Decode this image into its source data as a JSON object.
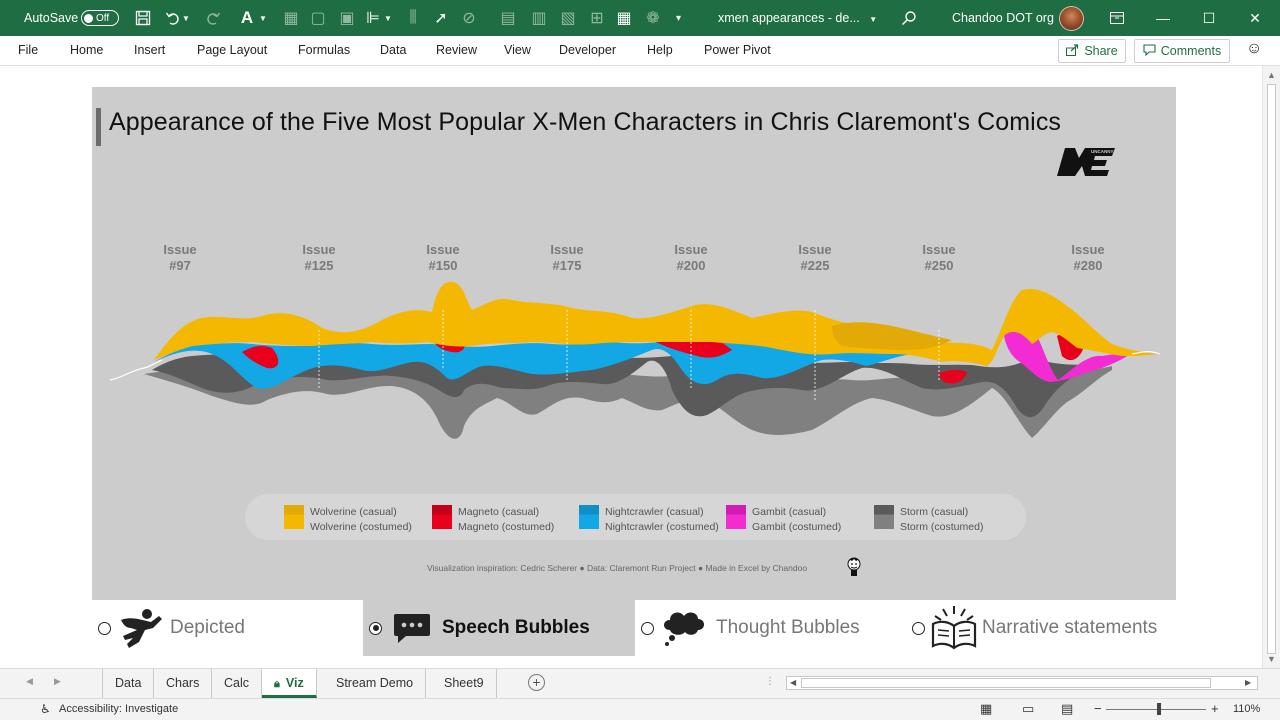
{
  "titlebar": {
    "autosave_label": "AutoSave",
    "autosave_state": "Off",
    "doc_title": "xmen appearances - de...",
    "user_name": "Chandoo DOT org",
    "icons": [
      "save-icon",
      "undo-icon",
      "redo-icon",
      "font-color-icon",
      "table-icon",
      "align-icon",
      "pointer-icon",
      "search-icon",
      "minimize-icon",
      "maximize-icon",
      "close-icon"
    ]
  },
  "ribbon": {
    "tabs": [
      "File",
      "Home",
      "Insert",
      "Page Layout",
      "Formulas",
      "Data",
      "Review",
      "View",
      "Developer",
      "Help",
      "Power Pivot"
    ],
    "share_label": "Share",
    "comments_label": "Comments"
  },
  "chart": {
    "title": "Appearance of the Five Most Popular X-Men Characters in Chris Claremont's Comics",
    "logo_text": "X-MEN",
    "issues": [
      {
        "line1": "Issue",
        "line2": "#97"
      },
      {
        "line1": "Issue",
        "line2": "#125"
      },
      {
        "line1": "Issue",
        "line2": "#150"
      },
      {
        "line1": "Issue",
        "line2": "#175"
      },
      {
        "line1": "Issue",
        "line2": "#200"
      },
      {
        "line1": "Issue",
        "line2": "#225"
      },
      {
        "line1": "Issue",
        "line2": "#250"
      },
      {
        "line1": "Issue",
        "line2": "#280"
      }
    ],
    "legend": [
      {
        "casual": "Wolverine (casual)",
        "costumed": "Wolverine (costumed)",
        "color": "#f5b800",
        "color2": "#e3aa07"
      },
      {
        "casual": "Magneto (casual)",
        "costumed": "Magneto (costumed)",
        "color": "#e8001c",
        "color2": "#c40018"
      },
      {
        "casual": "Nightcrawler (casual)",
        "costumed": "Nightcrawler (costumed)",
        "color": "#12a8e6",
        "color2": "#0f8fc4"
      },
      {
        "casual": "Gambit (casual)",
        "costumed": "Gambit (costumed)",
        "color": "#f22cd2",
        "color2": "#d11db6"
      },
      {
        "casual": "Storm (casual)",
        "costumed": "Storm (costumed)",
        "color": "#5a5a5a",
        "color2": "#808080"
      }
    ],
    "credit": "Visualization inspiration: Cedric Scherer ● Data: Claremont Run Project ● Made in Excel by Chandoo"
  },
  "options": [
    {
      "label": "Depicted",
      "selected": false,
      "icon": "hero-icon"
    },
    {
      "label": "Speech Bubbles",
      "selected": true,
      "icon": "speech-bubble-icon"
    },
    {
      "label": "Thought Bubbles",
      "selected": false,
      "icon": "thought-bubble-icon"
    },
    {
      "label": "Narrative statements",
      "selected": false,
      "icon": "book-icon"
    }
  ],
  "sheets": {
    "tabs": [
      "Data",
      "Chars",
      "Calc",
      "Viz",
      "Stream Demo",
      "Sheet9"
    ],
    "active": "Viz"
  },
  "status": {
    "accessibility": "Accessibility: Investigate",
    "zoom": "110%"
  },
  "colors": {
    "excel_green": "#1f6e43",
    "panel_bg": "#cccccc"
  }
}
